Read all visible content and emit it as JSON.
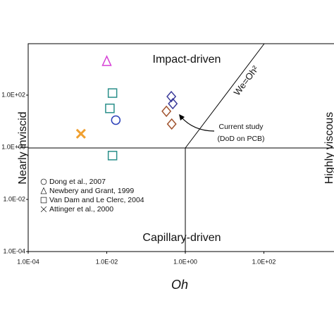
{
  "chart_data": {
    "type": "scatter",
    "log_x": true,
    "log_y": true,
    "xlabel": "Oh",
    "xlim": [
      0.0001,
      10000
    ],
    "ylim": [
      0.0001,
      10000
    ],
    "xticks": [
      {
        "value": 0.0001,
        "label": "1.0E-04"
      },
      {
        "value": 0.01,
        "label": "1.0E-02"
      },
      {
        "value": 1,
        "label": "1.0E+00"
      },
      {
        "value": 100,
        "label": "1.0E+02"
      }
    ],
    "yticks": [
      {
        "value": 0.0001,
        "label": "1.0E-04"
      },
      {
        "value": 0.01,
        "label": "1.0E-02"
      },
      {
        "value": 1,
        "label": "1.0E+00"
      },
      {
        "value": 100,
        "label": "1.0E+02"
      }
    ],
    "series": [
      {
        "name": "Dong et al., 2007",
        "marker": "circle",
        "color": "#2a3fb8",
        "x": [
          0.017
        ],
        "values": [
          11
        ]
      },
      {
        "name": "Newbery and Grant, 1999",
        "marker": "triangle",
        "color": "#d63fd6",
        "x": [
          0.01
        ],
        "values": [
          2000
        ]
      },
      {
        "name": "Van Dam and Le Clerc, 2004",
        "marker": "square",
        "color": "#2a8f8a",
        "x": [
          0.014,
          0.012,
          0.014
        ],
        "values": [
          120,
          31,
          0.48
        ]
      },
      {
        "name": "Attinger et al., 2000",
        "marker": "cross",
        "color": "#f0a030",
        "x": [
          0.0022
        ],
        "values": [
          3.3
        ]
      },
      {
        "marker": "diamond",
        "color": "#3a3a9a",
        "x": [
          0.44,
          0.48
        ],
        "values": [
          88,
          47
        ]
      },
      {
        "marker": "diamond",
        "color": "#a0522d",
        "x": [
          0.33,
          0.45
        ],
        "values": [
          24,
          7.8
        ]
      }
    ],
    "regions": {
      "impact": "Impact-driven",
      "capillary": "Capillary-driven",
      "inviscid": "Nearly inviscid",
      "viscous": "Highly viscous",
      "boundary": "We=Oh²"
    },
    "annotation": [
      "Current study",
      "(DoD on PCB)"
    ]
  }
}
